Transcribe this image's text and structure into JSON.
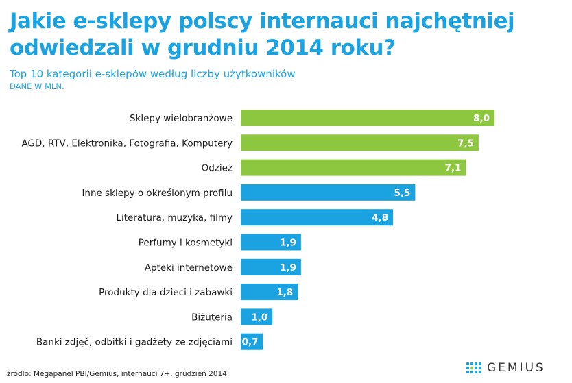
{
  "header": {
    "title": "Jakie e-sklepy polscy internauci najchętniej odwiedzali w grudniu 2014 roku?",
    "subtitle": "Top 10 kategorii e-sklepów według liczby użytkowników",
    "unit_note": "DANE W MLN."
  },
  "footer": {
    "source": "źródło: Megapanel PBI/Gemius, internauci 7+, grudzień 2014",
    "logo_text": "GEMIUS"
  },
  "colors": {
    "top_bar": "#8dc63f",
    "other_bar": "#1aa3e0",
    "accent": "#1aa3e0"
  },
  "chart_data": {
    "type": "bar",
    "orientation": "horizontal",
    "title": "Jakie e-sklepy polscy internauci najchętniej odwiedzali w grudniu 2014 roku?",
    "subtitle": "Top 10 kategorii e-sklepów według liczby użytkowników",
    "categories": [
      "Sklepy wielobranżowe",
      "AGD, RTV, Elektronika, Fotografia, Komputery",
      "Odzież",
      "Inne sklepy o określonym profilu",
      "Literatura, muzyka, filmy",
      "Perfumy i kosmetyki",
      "Apteki internetowe",
      "Produkty dla dzieci i zabawki",
      "Biżuteria",
      "Banki zdjęć, odbitki i gadżety ze zdjęciami"
    ],
    "values": [
      8.0,
      7.5,
      7.1,
      5.5,
      4.8,
      1.9,
      1.9,
      1.8,
      1.0,
      0.7
    ],
    "value_labels": [
      "8,0",
      "7,5",
      "7,1",
      "5,5",
      "4,8",
      "1,9",
      "1,9",
      "1,8",
      "1,0",
      "0,7"
    ],
    "bar_colors": [
      "#8dc63f",
      "#8dc63f",
      "#8dc63f",
      "#1aa3e0",
      "#1aa3e0",
      "#1aa3e0",
      "#1aa3e0",
      "#1aa3e0",
      "#1aa3e0",
      "#1aa3e0"
    ],
    "xlim": [
      0,
      8.0
    ],
    "grid": false,
    "legend": "none"
  }
}
